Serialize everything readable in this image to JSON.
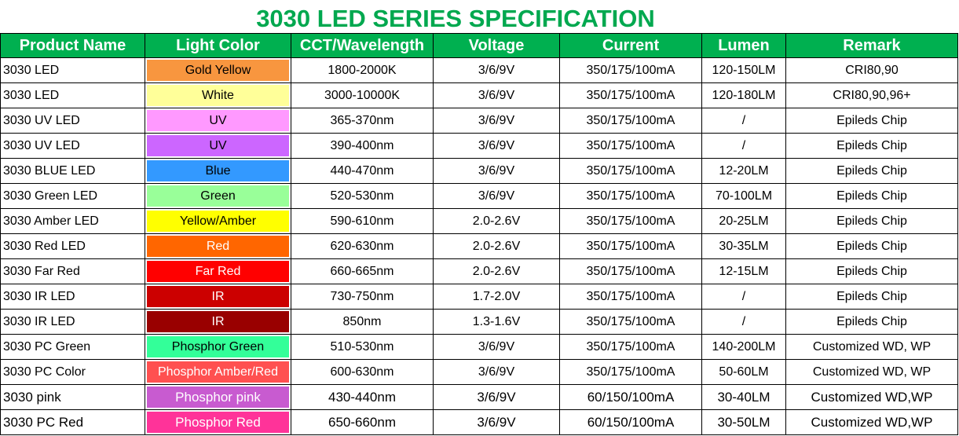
{
  "title": "3030 LED SERIES SPECIFICATION",
  "table": {
    "header": [
      "Product Name",
      "Light Color",
      "CCT/Wavelength",
      "Voltage",
      "Current",
      "Lumen",
      "Remark"
    ],
    "rows": [
      [
        "3030 LED",
        "Gold Yellow",
        "1800-2000K",
        "3/6/9V",
        "350/175/100mA",
        "120-150LM",
        "CRI80,90"
      ],
      [
        "3030 LED",
        "White",
        "3000-10000K",
        "3/6/9V",
        "350/175/100mA",
        "120-180LM",
        "CRI80,90,96+"
      ],
      [
        "3030 UV LED",
        "UV",
        "365-370nm",
        "3/6/9V",
        "350/175/100mA",
        "/",
        "Epileds Chip"
      ],
      [
        "3030 UV LED",
        "UV",
        "390-400nm",
        "3/6/9V",
        "350/175/100mA",
        "/",
        "Epileds Chip"
      ],
      [
        "3030 BLUE LED",
        "Blue",
        "440-470nm",
        "3/6/9V",
        "350/175/100mA",
        "12-20LM",
        "Epileds Chip"
      ],
      [
        "3030 Green LED",
        "Green",
        "520-530nm",
        "3/6/9V",
        "350/175/100mA",
        "70-100LM",
        "Epileds Chip"
      ],
      [
        "3030 Amber LED",
        "Yellow/Amber",
        "590-610nm",
        "2.0-2.6V",
        "350/175/100mA",
        "20-25LM",
        "Epileds Chip"
      ],
      [
        "3030 Red LED",
        "Red",
        "620-630nm",
        "2.0-2.6V",
        "350/175/100mA",
        "30-35LM",
        "Epileds Chip"
      ],
      [
        "3030 Far Red",
        "Far Red",
        "660-665nm",
        "2.0-2.6V",
        "350/175/100mA",
        "12-15LM",
        "Epileds Chip"
      ],
      [
        "3030 IR LED",
        "IR",
        "730-750nm",
        "1.7-2.0V",
        "350/175/100mA",
        "/",
        "Epileds Chip"
      ],
      [
        "3030 IR LED",
        "IR",
        "850nm",
        "1.3-1.6V",
        "350/175/100mA",
        "/",
        "Epileds Chip"
      ],
      [
        "3030 PC Green",
        "Phosphor Green",
        "510-530nm",
        "3/6/9V",
        "350/175/100mA",
        "140-200LM",
        "Customized WD, WP"
      ],
      [
        "3030 PC Color",
        "Phosphor Amber/Red",
        "600-630nm",
        "3/6/9V",
        "350/175/100mA",
        "50-60LM",
        "Customized WD, WP"
      ],
      [
        "3030 pink",
        "Phosphor pink",
        "430-440nm",
        "3/6/9V",
        "60/150/100mA",
        "30-40LM",
        "Customized WD,WP"
      ],
      [
        "3030 PC Red",
        "Phosphor Red",
        "650-660nm",
        "3/6/9V",
        "60/150/100mA",
        "30-50LM",
        "Customized WD,WP"
      ]
    ]
  }
}
